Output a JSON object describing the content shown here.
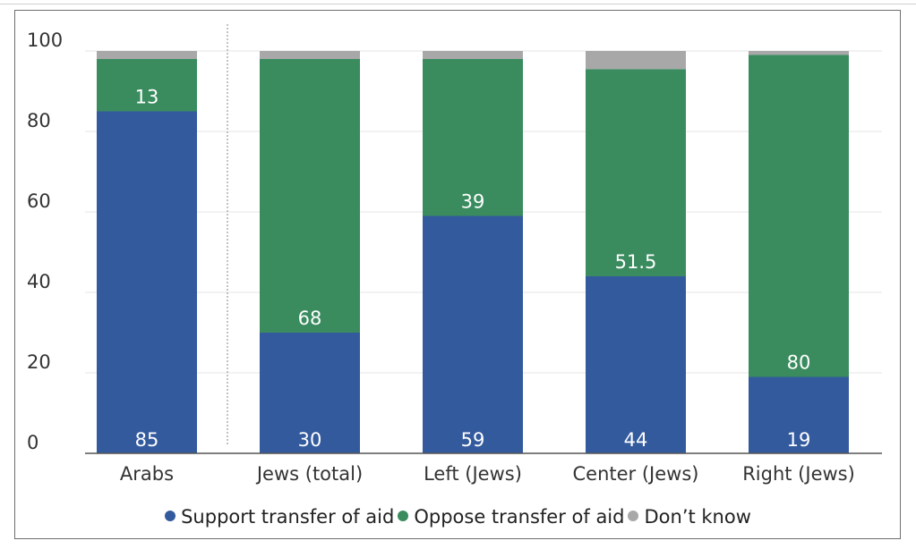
{
  "chart_data": {
    "type": "bar",
    "stacked": true,
    "categories": [
      "Arabs",
      "Jews (total)",
      "Left (Jews)",
      "Center (Jews)",
      "Right (Jews)"
    ],
    "series": [
      {
        "name": "Support transfer of aid",
        "values": [
          85,
          30,
          59,
          44,
          19
        ],
        "labels": [
          "85",
          "30",
          "59",
          "44",
          "19"
        ],
        "color": "#345a9e"
      },
      {
        "name": "Oppose transfer of aid",
        "values": [
          13,
          68,
          39,
          51.5,
          80
        ],
        "labels": [
          "13",
          "68",
          "39",
          "51.5",
          "80"
        ],
        "color": "#3a8c5f"
      },
      {
        "name": "Don’t know",
        "values": [
          2,
          2,
          2,
          4.5,
          1
        ],
        "labels": null,
        "color": "#a8a8a8"
      }
    ],
    "ylim": [
      0,
      100
    ],
    "yticks": [
      0,
      20,
      40,
      60,
      80,
      100
    ],
    "grid": true,
    "separator_after_category": 0,
    "legend_position": "bottom",
    "title": "",
    "xlabel": "",
    "ylabel": ""
  }
}
